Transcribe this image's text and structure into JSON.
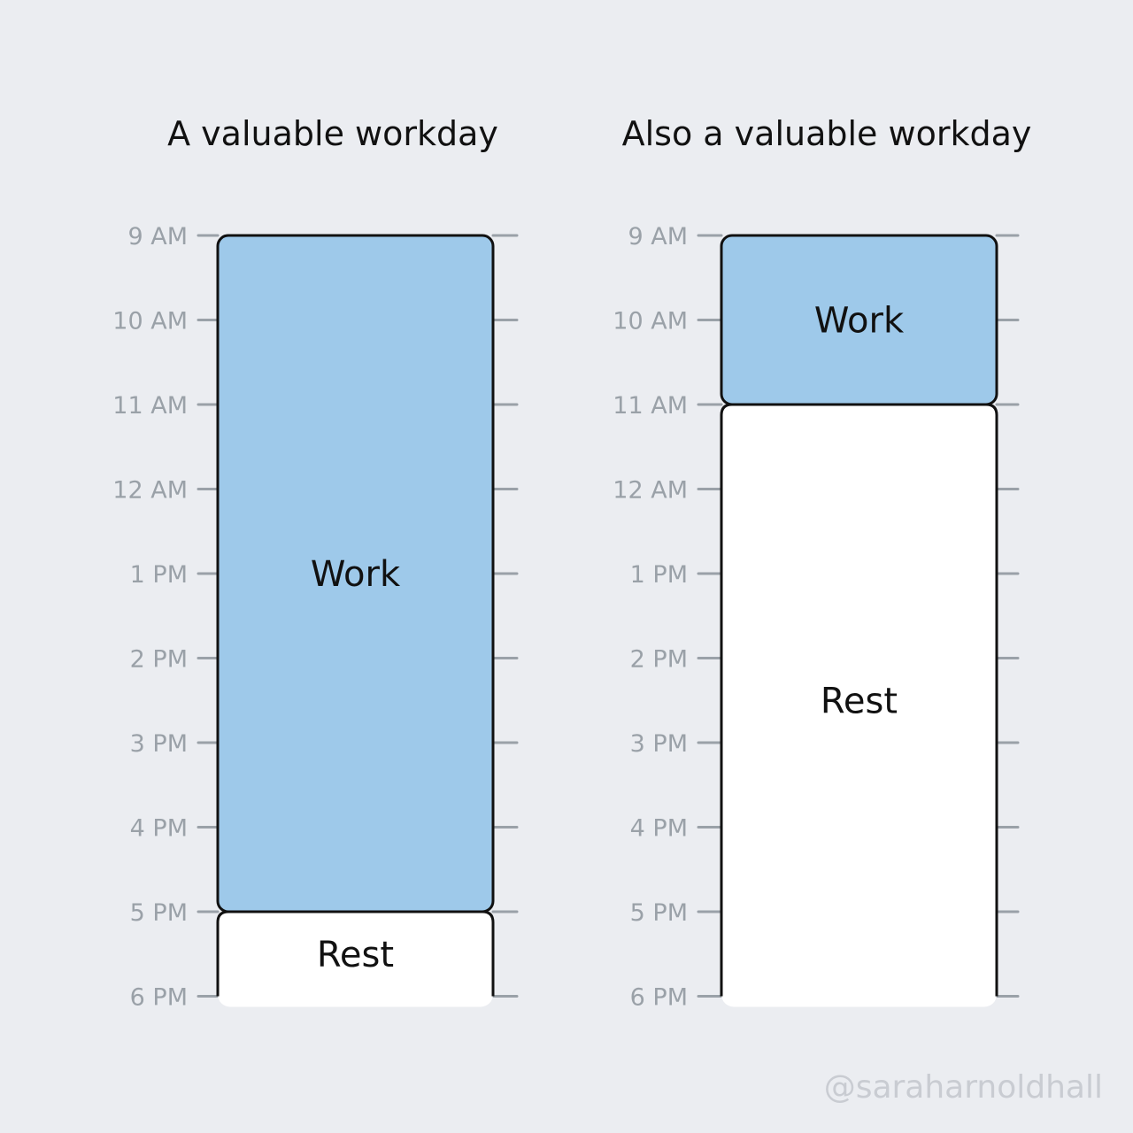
{
  "chart_data": [
    {
      "type": "bar",
      "title": "A valuable workday",
      "y_ticks": [
        "9 AM",
        "10 AM",
        "11 AM",
        "12 AM",
        "1 PM",
        "2 PM",
        "3 PM",
        "4 PM",
        "5 PM",
        "6 PM"
      ],
      "segments": [
        {
          "label": "Work",
          "start": "9 AM",
          "end": "5 PM",
          "hours": 8,
          "color": "#9ec9ea"
        },
        {
          "label": "Rest",
          "start": "5 PM",
          "end": "6 PM",
          "hours": 1,
          "color": "#ffffff"
        }
      ]
    },
    {
      "type": "bar",
      "title": "Also a valuable workday",
      "y_ticks": [
        "9 AM",
        "10 AM",
        "11 AM",
        "12 AM",
        "1 PM",
        "2 PM",
        "3 PM",
        "4 PM",
        "5 PM",
        "6 PM"
      ],
      "segments": [
        {
          "label": "Work",
          "start": "9 AM",
          "end": "11 AM",
          "hours": 2,
          "color": "#9ec9ea"
        },
        {
          "label": "Rest",
          "start": "11 AM",
          "end": "6 PM",
          "hours": 7,
          "color": "#ffffff"
        }
      ]
    }
  ],
  "credit": "@saraharnoldhall",
  "colors": {
    "background": "#ebedf1",
    "work": "#9ec9ea",
    "rest": "#ffffff",
    "tick": "#9aa1a8",
    "outline": "#111111"
  }
}
